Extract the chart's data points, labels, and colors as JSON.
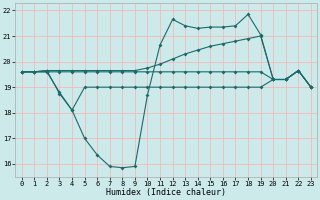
{
  "bg_color": "#cceaea",
  "grid_color": "#f5b8b8",
  "line_color": "#1a6b6b",
  "xlabel": "Humidex (Indice chaleur)",
  "xlim": [
    -0.5,
    23.5
  ],
  "ylim": [
    15.5,
    22.3
  ],
  "yticks": [
    16,
    17,
    18,
    19,
    20,
    21,
    22
  ],
  "xticks": [
    0,
    1,
    2,
    3,
    4,
    5,
    6,
    7,
    8,
    9,
    10,
    11,
    12,
    13,
    14,
    15,
    16,
    17,
    18,
    19,
    20,
    21,
    22,
    23
  ],
  "lineA_x": [
    0,
    1,
    2,
    3,
    4,
    5,
    6,
    7,
    8,
    9,
    10,
    11,
    12,
    13,
    14,
    15,
    16,
    17,
    18,
    19,
    20,
    21,
    22,
    23
  ],
  "lineA_y": [
    19.6,
    19.6,
    19.6,
    18.8,
    18.1,
    17.0,
    16.35,
    15.9,
    15.85,
    15.9,
    18.7,
    20.65,
    21.65,
    21.4,
    21.3,
    21.35,
    21.35,
    21.4,
    21.85,
    21.05,
    19.3,
    19.3,
    19.65,
    19.0
  ],
  "lineB_x": [
    0,
    1,
    2,
    3,
    4,
    5,
    6,
    7,
    8,
    9,
    10,
    11,
    12,
    13,
    14,
    15,
    16,
    17,
    18,
    19,
    20,
    21,
    22,
    23
  ],
  "lineB_y": [
    19.6,
    19.6,
    19.65,
    19.65,
    19.65,
    19.65,
    19.65,
    19.65,
    19.65,
    19.65,
    19.75,
    19.9,
    20.1,
    20.3,
    20.45,
    20.6,
    20.7,
    20.8,
    20.9,
    21.0,
    19.3,
    19.3,
    19.65,
    19.0
  ],
  "lineC_x": [
    0,
    1,
    2,
    3,
    4,
    5,
    6,
    7,
    8,
    9,
    10,
    11,
    12,
    13,
    14,
    15,
    16,
    17,
    18,
    19,
    20,
    21,
    22,
    23
  ],
  "lineC_y": [
    19.6,
    19.6,
    19.6,
    19.6,
    19.6,
    19.6,
    19.6,
    19.6,
    19.6,
    19.6,
    19.6,
    19.6,
    19.6,
    19.6,
    19.6,
    19.6,
    19.6,
    19.6,
    19.6,
    19.6,
    19.3,
    19.3,
    19.65,
    19.0
  ],
  "lineD_x": [
    0,
    1,
    2,
    3,
    4,
    5,
    6,
    7,
    8,
    9,
    10,
    11,
    12,
    13,
    14,
    15,
    16,
    17,
    18,
    19,
    20,
    21,
    22,
    23
  ],
  "lineD_y": [
    19.6,
    19.6,
    19.65,
    18.75,
    18.1,
    19.0,
    19.0,
    19.0,
    19.0,
    19.0,
    19.0,
    19.0,
    19.0,
    19.0,
    19.0,
    19.0,
    19.0,
    19.0,
    19.0,
    19.0,
    19.3,
    19.3,
    19.65,
    19.0
  ]
}
